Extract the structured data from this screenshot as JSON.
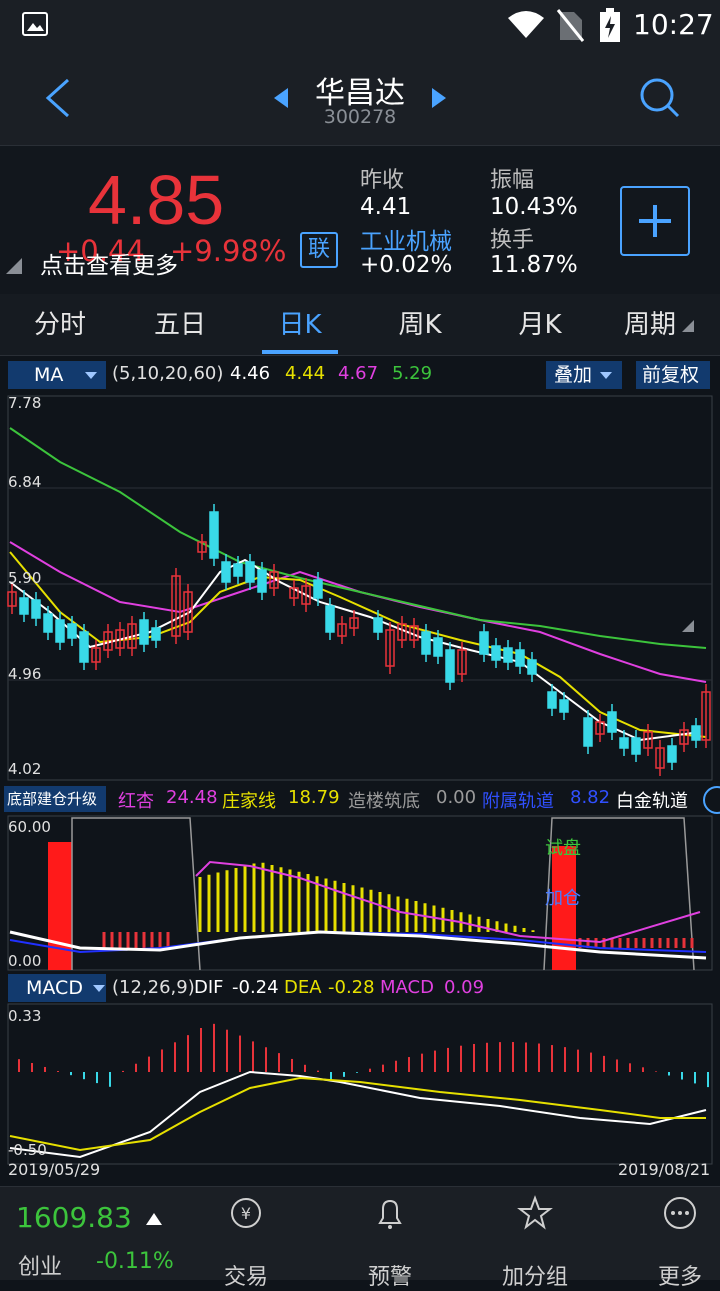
{
  "status": {
    "time": "10:27"
  },
  "nav": {
    "title": "华昌达",
    "code": "300278"
  },
  "quote": {
    "price": "4.85",
    "change": "+0.44",
    "change_pct": "+9.98%",
    "hint": "点击查看更多",
    "lian": "联",
    "prev_close_label": "昨收",
    "prev_close": "4.41",
    "industry": "工业机械",
    "industry_change": "+0.02%",
    "amplitude_label": "振幅",
    "amplitude": "10.43%",
    "turnover_label": "换手",
    "turnover": "11.87%"
  },
  "tabs": [
    "分时",
    "五日",
    "日K",
    "周K",
    "月K",
    "周期"
  ],
  "ma": {
    "label": "MA",
    "params": "(5,10,20,60)",
    "v5": "4.46",
    "v10": "4.44",
    "v20": "4.67",
    "v60": "5.29",
    "overlay": "叠加",
    "adjust": "前复权",
    "levels": [
      "7.78",
      "6.84",
      "5.90",
      "4.96",
      "4.02"
    ]
  },
  "indicator": {
    "label": "底部建仓升级",
    "hongxing_label": "红杏",
    "hongxing": "24.48",
    "zhuang_label": "庄家线",
    "zhuang": "18.79",
    "zaolou_label": "造楼筑底",
    "zaolou": "0.00",
    "fushu_label": "附属轨道",
    "fushu": "8.82",
    "baijin_label": "白金轨道",
    "top": "60.00",
    "bottom": "0.00",
    "tag_try": "试盘",
    "tag_add": "加仓"
  },
  "macd": {
    "label": "MACD",
    "params": "(12,26,9)",
    "dif_label": "DIF",
    "dif": "-0.24",
    "dea_label": "DEA",
    "dea": "-0.28",
    "macd_label": "MACD",
    "macd": "0.09",
    "top": "0.33",
    "bottom": "-0.50",
    "date_start": "2019/05/29",
    "date_end": "2019/08/21"
  },
  "bottom": {
    "index_value": "1609.83",
    "index_name": "创业",
    "index_change": "-0.11%",
    "items": [
      "交易",
      "预警",
      "加分组",
      "更多"
    ]
  },
  "colors": {
    "up": "#e8333a",
    "down": "#39d9e8",
    "accent": "#4aa3ff"
  }
}
